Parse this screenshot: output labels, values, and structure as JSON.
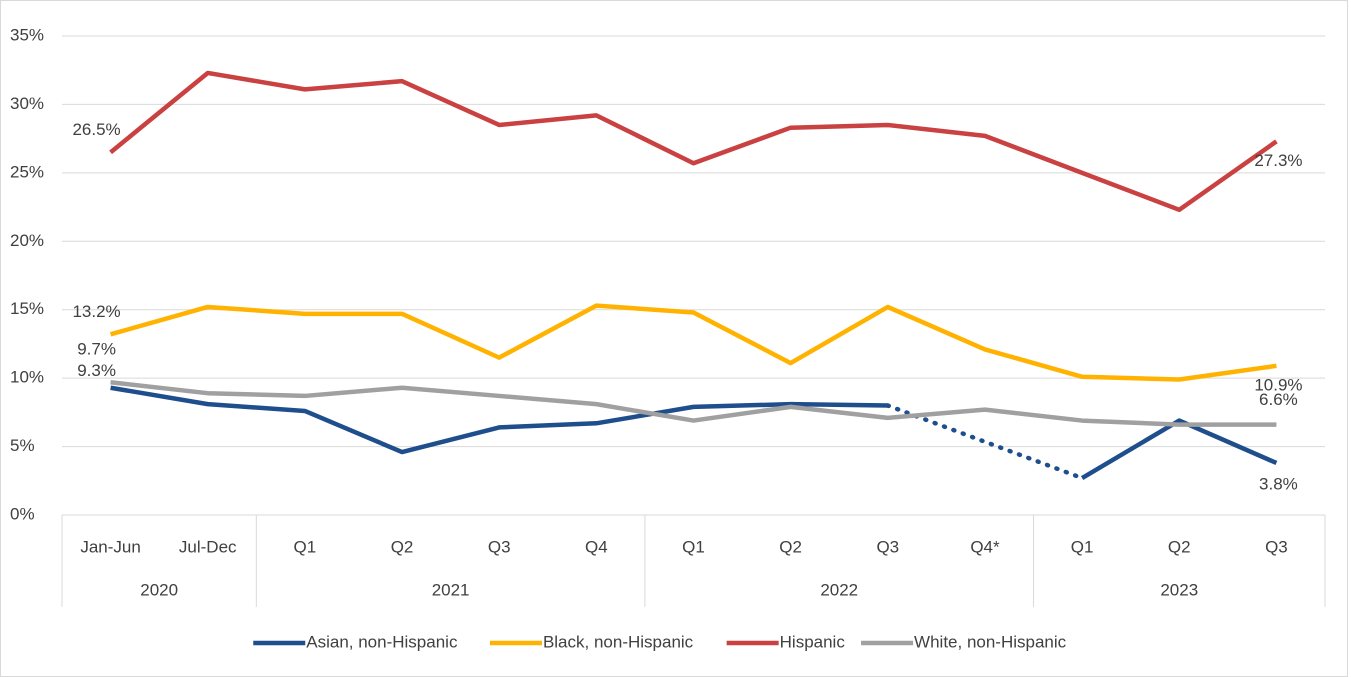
{
  "chart_data": {
    "type": "line",
    "categories": [
      "Jan-Jun",
      "Jul-Dec",
      "Q1",
      "Q2",
      "Q3",
      "Q4",
      "Q1",
      "Q2",
      "Q3",
      "Q4*",
      "Q1",
      "Q2",
      "Q3"
    ],
    "category_groups": [
      "2020",
      null,
      "2021",
      null,
      null,
      null,
      "2022",
      null,
      null,
      null,
      "2023",
      null,
      null
    ],
    "ylim": [
      0,
      35
    ],
    "yticks": [
      {
        "value": 0,
        "label": "0%"
      },
      {
        "value": 5,
        "label": "5%"
      },
      {
        "value": 10,
        "label": "10%"
      },
      {
        "value": 15,
        "label": "15%"
      },
      {
        "value": 20,
        "label": "20%"
      },
      {
        "value": 25,
        "label": "25%"
      },
      {
        "value": 30,
        "label": "30%"
      },
      {
        "value": 35,
        "label": "35%"
      }
    ],
    "grid": true,
    "legend": "bottom",
    "series": [
      {
        "name": "Asian, non-Hispanic",
        "color": "#1f4e8c",
        "gap_style": "dotted",
        "values": [
          9.3,
          8.1,
          7.6,
          4.6,
          6.4,
          6.7,
          7.9,
          8.1,
          8.0,
          null,
          2.7,
          6.9,
          3.8
        ],
        "value_labels": [
          "9.3%",
          null,
          null,
          null,
          null,
          null,
          null,
          null,
          null,
          null,
          null,
          null,
          "3.8%"
        ]
      },
      {
        "name": "Black, non-Hispanic",
        "color": "#ffb300",
        "values": [
          13.2,
          15.2,
          14.7,
          14.7,
          11.5,
          15.3,
          14.8,
          11.1,
          15.2,
          12.1,
          10.1,
          9.9,
          10.9
        ],
        "value_labels": [
          "13.2%",
          null,
          null,
          null,
          null,
          null,
          null,
          null,
          null,
          null,
          null,
          null,
          "10.9%"
        ]
      },
      {
        "name": "Hispanic",
        "color": "#c94141",
        "values": [
          26.5,
          32.3,
          31.1,
          31.7,
          28.5,
          29.2,
          25.7,
          28.3,
          28.5,
          27.7,
          25.0,
          22.3,
          27.3
        ],
        "value_labels": [
          "26.5%",
          null,
          null,
          null,
          null,
          null,
          null,
          null,
          null,
          null,
          null,
          null,
          "27.3%"
        ]
      },
      {
        "name": "White, non-Hispanic",
        "color": "#a0a0a0",
        "values": [
          9.7,
          8.9,
          8.7,
          9.3,
          8.7,
          8.1,
          6.9,
          7.9,
          7.1,
          7.7,
          6.9,
          6.6,
          6.6
        ],
        "value_labels": [
          "9.7%",
          null,
          null,
          null,
          null,
          null,
          null,
          null,
          null,
          null,
          null,
          null,
          "6.6%"
        ]
      }
    ]
  }
}
